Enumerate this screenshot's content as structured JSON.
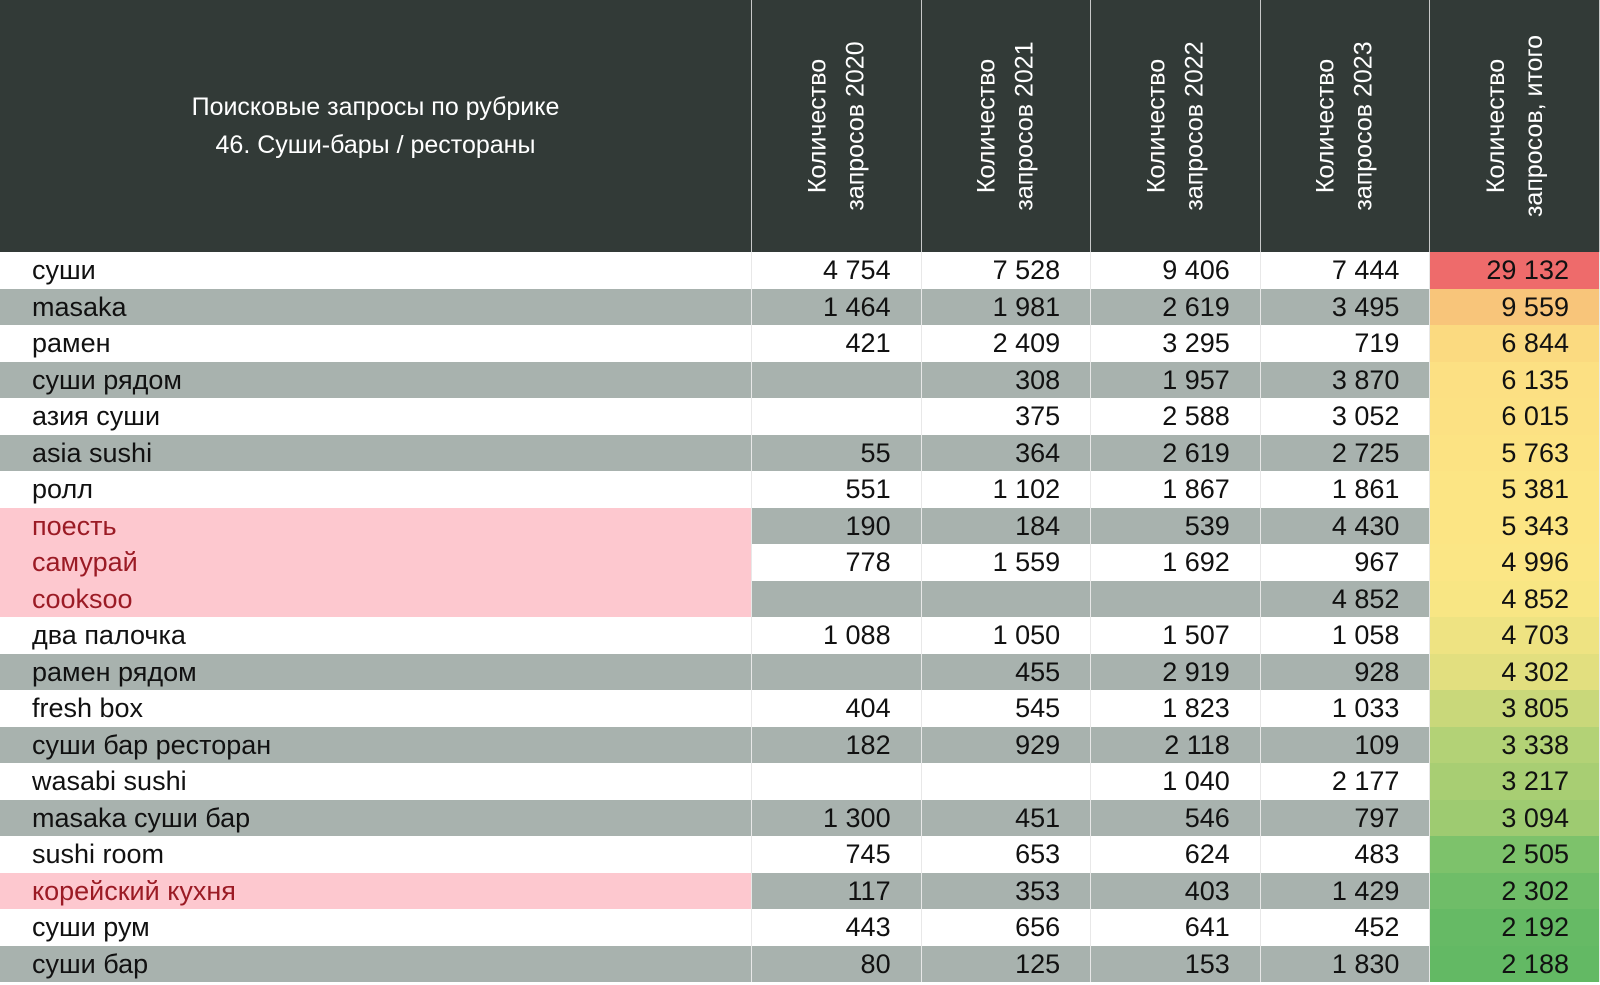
{
  "table": {
    "title": [
      "Поисковые запросы по рубрике",
      "46. Суши-бары / рестораны"
    ],
    "columns": [
      [
        "Количество",
        "запросов 2020"
      ],
      [
        "Количество",
        "запросов 2021"
      ],
      [
        "Количество",
        "запросов 2022"
      ],
      [
        "Количество",
        "запросов 2023"
      ],
      [
        "Количество",
        "запросов, итого"
      ]
    ],
    "rows": [
      {
        "query": "суши",
        "values": [
          "4 754",
          "7 528",
          "9 406",
          "7 444"
        ],
        "total": "29 132",
        "total_color": "#ee6b6b",
        "highlight": false
      },
      {
        "query": "masaka",
        "values": [
          "1 464",
          "1 981",
          "2 619",
          "3 495"
        ],
        "total": "9 559",
        "total_color": "#f8c57a",
        "highlight": false
      },
      {
        "query": "рамен",
        "values": [
          "421",
          "2 409",
          "3 295",
          "719"
        ],
        "total": "6 844",
        "total_color": "#fbda80",
        "highlight": false
      },
      {
        "query": "суши рядом",
        "values": [
          null,
          "308",
          "1 957",
          "3 870"
        ],
        "total": "6 135",
        "total_color": "#fce083",
        "highlight": false
      },
      {
        "query": "азия суши",
        "values": [
          null,
          "375",
          "2 588",
          "3 052"
        ],
        "total": "6 015",
        "total_color": "#fce183",
        "highlight": false
      },
      {
        "query": "asia sushi",
        "values": [
          "55",
          "364",
          "2 619",
          "2 725"
        ],
        "total": "5 763",
        "total_color": "#fce383",
        "highlight": false
      },
      {
        "query": "ролл",
        "values": [
          "551",
          "1 102",
          "1 867",
          "1 861"
        ],
        "total": "5 381",
        "total_color": "#fce584",
        "highlight": false
      },
      {
        "query": "поесть",
        "values": [
          "190",
          "184",
          "539",
          "4 430"
        ],
        "total": "5 343",
        "total_color": "#fce584",
        "highlight": true
      },
      {
        "query": "самурай",
        "values": [
          "778",
          "1 559",
          "1 692",
          "967"
        ],
        "total": "4 996",
        "total_color": "#fbe685",
        "highlight": true
      },
      {
        "query": "cooksoo",
        "values": [
          null,
          null,
          null,
          "4 852"
        ],
        "total": "4 852",
        "total_color": "#f8e684",
        "highlight": true
      },
      {
        "query": "два палочка",
        "values": [
          "1 088",
          "1 050",
          "1 507",
          "1 058"
        ],
        "total": "4 703",
        "total_color": "#eee382",
        "highlight": false
      },
      {
        "query": "рамен рядом",
        "values": [
          null,
          "455",
          "2 919",
          "928"
        ],
        "total": "4 302",
        "total_color": "#e2df7f",
        "highlight": false
      },
      {
        "query": "fresh box",
        "values": [
          "404",
          "545",
          "1 823",
          "1 033"
        ],
        "total": "3 805",
        "total_color": "#c9d87a",
        "highlight": false
      },
      {
        "query": "суши бар ресторан",
        "values": [
          "182",
          "929",
          "2 118",
          "109"
        ],
        "total": "3 338",
        "total_color": "#b3d276",
        "highlight": false
      },
      {
        "query": "wasabi sushi",
        "values": [
          null,
          null,
          "1 040",
          "2 177"
        ],
        "total": "3 217",
        "total_color": "#a8ce73",
        "highlight": false
      },
      {
        "query": "masaka суши бар",
        "values": [
          "1 300",
          "451",
          "546",
          "797"
        ],
        "total": "3 094",
        "total_color": "#9ecb71",
        "highlight": false
      },
      {
        "query": "sushi room",
        "values": [
          "745",
          "653",
          "624",
          "483"
        ],
        "total": "2 505",
        "total_color": "#7dc26b",
        "highlight": false
      },
      {
        "query": "корейский кухня",
        "values": [
          "117",
          "353",
          "403",
          "1 429"
        ],
        "total": "2 302",
        "total_color": "#6fbd68",
        "highlight": true
      },
      {
        "query": "суши рум",
        "values": [
          "443",
          "656",
          "641",
          "452"
        ],
        "total": "2 192",
        "total_color": "#66ba65",
        "highlight": false
      },
      {
        "query": "суши бар",
        "values": [
          "80",
          "125",
          "153",
          "1 830"
        ],
        "total": "2 188",
        "total_color": "#63b964",
        "highlight": false
      }
    ]
  }
}
